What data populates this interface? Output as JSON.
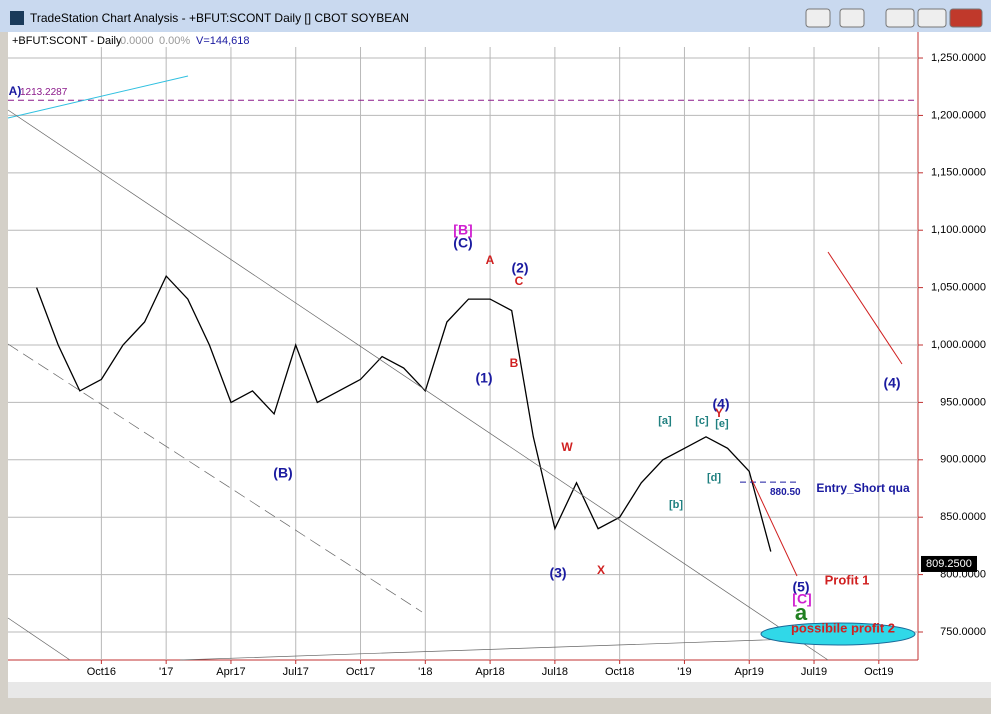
{
  "window": {
    "title": "TradeStation Chart Analysis - +BFUT:SCONT Daily [] CBOT SOYBEAN"
  },
  "info": {
    "symbol": "+BFUT:SCONT - Daily",
    "change": "0.0000",
    "change_pct": "0.00%",
    "volume": "V=144,618"
  },
  "chart_data": {
    "type": "line",
    "x": [
      "2016-07",
      "2016-08",
      "2016-09",
      "2016-10",
      "2016-11",
      "2016-12",
      "2017-01",
      "2017-02",
      "2017-03",
      "2017-04",
      "2017-05",
      "2017-06",
      "2017-07",
      "2017-08",
      "2017-09",
      "2017-10",
      "2017-11",
      "2017-12",
      "2018-01",
      "2018-02",
      "2018-03",
      "2018-04",
      "2018-05",
      "2018-06",
      "2018-07",
      "2018-08",
      "2018-09",
      "2018-10",
      "2018-11",
      "2018-12",
      "2019-01",
      "2019-02",
      "2019-03",
      "2019-04",
      "2019-05"
    ],
    "series": [
      {
        "name": "+BFUT:SCONT",
        "color": "#000000",
        "values": [
          1050,
          1000,
          960,
          970,
          1000,
          1020,
          1060,
          1040,
          1000,
          950,
          960,
          940,
          1000,
          950,
          960,
          970,
          990,
          980,
          960,
          1020,
          1040,
          1040,
          1030,
          920,
          840,
          880,
          840,
          850,
          880,
          900,
          910,
          920,
          910,
          890,
          820
        ]
      }
    ],
    "xlim": [
      "2016-06",
      "2019-12"
    ],
    "xticks": [
      {
        "value": "2016-10",
        "label": "Oct16"
      },
      {
        "value": "2017-01",
        "label": "'17"
      },
      {
        "value": "2017-04",
        "label": "Apr17"
      },
      {
        "value": "2017-07",
        "label": "Jul17"
      },
      {
        "value": "2017-10",
        "label": "Oct17"
      },
      {
        "value": "2018-01",
        "label": "'18"
      },
      {
        "value": "2018-04",
        "label": "Apr18"
      },
      {
        "value": "2018-07",
        "label": "Jul18"
      },
      {
        "value": "2018-10",
        "label": "Oct18"
      },
      {
        "value": "2019-01",
        "label": "'19"
      },
      {
        "value": "2019-04",
        "label": "Apr19"
      },
      {
        "value": "2019-07",
        "label": "Jul19"
      },
      {
        "value": "2019-10",
        "label": "Oct19"
      }
    ],
    "ylim": [
      725.6,
      1259.6
    ],
    "yticks": [
      {
        "value": 750,
        "label": "750.0000"
      },
      {
        "value": 800,
        "label": "800.0000"
      },
      {
        "value": 850,
        "label": "850.0000"
      },
      {
        "value": 900,
        "label": "900.0000"
      },
      {
        "value": 950,
        "label": "950.0000"
      },
      {
        "value": 1000,
        "label": "1,000.0000"
      },
      {
        "value": 1050,
        "label": "1,050.0000"
      },
      {
        "value": 1100,
        "label": "1,100.0000"
      },
      {
        "value": 1150,
        "label": "1,150.0000"
      },
      {
        "value": 1200,
        "label": "1,200.0000"
      },
      {
        "value": 1250,
        "label": "1,250.0000"
      }
    ],
    "grid": true,
    "last_price": {
      "value": 809.25,
      "label": "809.2500"
    },
    "levels": [
      {
        "value": 1213.2287,
        "label": "1213.2287",
        "color": "#8b1a8b"
      },
      {
        "value": 880.5,
        "label": "880.50",
        "color": "#1a1aa0"
      }
    ],
    "annotations": [
      {
        "text": "A)",
        "color": "#1a1aa0"
      },
      {
        "text": "[B]",
        "color": "#d020d0"
      },
      {
        "text": "(C)",
        "color": "#1a1aa0"
      },
      {
        "text": "A",
        "color": "#d02020"
      },
      {
        "text": "(2)",
        "color": "#1a1aa0"
      },
      {
        "text": "C",
        "color": "#d02020"
      },
      {
        "text": "B",
        "color": "#d02020"
      },
      {
        "text": "(1)",
        "color": "#1a1aa0"
      },
      {
        "text": "(B)",
        "color": "#1a1aa0"
      },
      {
        "text": "(4)",
        "color": "#1a1aa0"
      },
      {
        "text": "(4)",
        "color": "#1a1aa0"
      },
      {
        "text": "Y",
        "color": "#d02020"
      },
      {
        "text": "[a]",
        "color": "#208080"
      },
      {
        "text": "[c]",
        "color": "#208080"
      },
      {
        "text": "[e]",
        "color": "#208080"
      },
      {
        "text": "[d]",
        "color": "#208080"
      },
      {
        "text": "[b]",
        "color": "#208080"
      },
      {
        "text": "W",
        "color": "#d02020"
      },
      {
        "text": "(3)",
        "color": "#1a1aa0"
      },
      {
        "text": "X",
        "color": "#d02020"
      },
      {
        "text": "(5)",
        "color": "#1a1aa0"
      },
      {
        "text": "[C]",
        "color": "#d020d0"
      },
      {
        "text": "a",
        "color": "#208020"
      },
      {
        "text": "Profit 1",
        "color": "#d02020"
      },
      {
        "text": "Entry_Short qua",
        "color": "#1a1aa0"
      },
      {
        "text": "possibile profit 2",
        "color": "#d02020"
      }
    ]
  }
}
